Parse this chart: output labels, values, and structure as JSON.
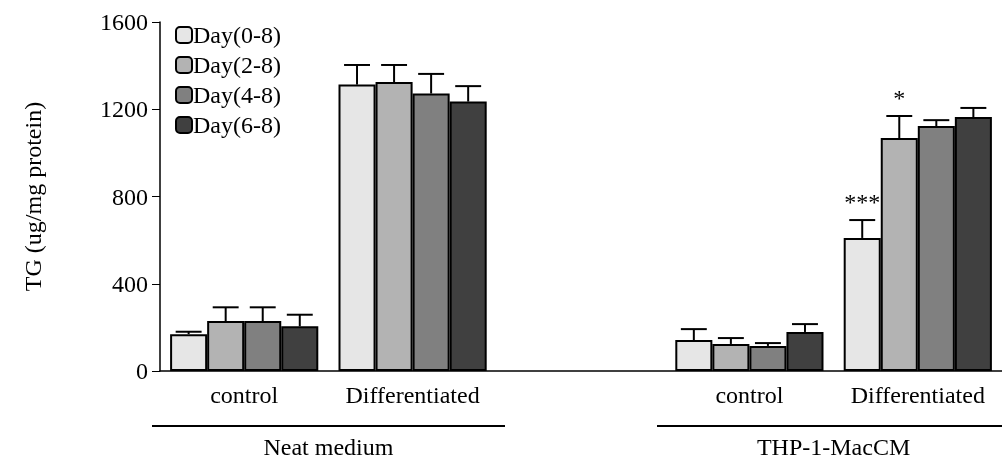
{
  "chart_data": {
    "type": "bar",
    "ylabel": "TG (ug/mg protein)",
    "categories": [
      "control",
      "Differentiated",
      null,
      "control",
      "Differentiated"
    ],
    "series": [
      {
        "name": "Day(0-8)",
        "color": "#e6e6e6",
        "values": [
          169,
          1313,
          null,
          142,
          610
        ],
        "errors": [
          [
            169,
            180
          ],
          [
            1313,
            1403
          ],
          null,
          [
            142,
            192
          ],
          [
            610,
            692
          ]
        ]
      },
      {
        "name": "Day(2-8)",
        "color": "#b3b3b3",
        "values": [
          229,
          1325,
          null,
          124,
          1068
        ],
        "errors": [
          [
            229,
            292
          ],
          [
            1325,
            1403
          ],
          null,
          [
            124,
            151
          ],
          [
            1068,
            1169
          ]
        ]
      },
      {
        "name": "Day(4-8)",
        "color": "#808080",
        "values": [
          229,
          1272,
          null,
          115,
          1123
        ],
        "errors": [
          [
            229,
            292
          ],
          [
            1272,
            1362
          ],
          null,
          [
            115,
            128
          ],
          [
            1123,
            1150
          ]
        ]
      },
      {
        "name": "Day(6-8)",
        "color": "#404040",
        "values": [
          205,
          1235,
          null,
          179,
          1164
        ],
        "errors": [
          [
            205,
            258
          ],
          [
            1235,
            1306
          ],
          null,
          [
            179,
            215
          ],
          [
            1164,
            1206
          ]
        ]
      }
    ],
    "ylim": [
      0,
      1600
    ],
    "yticks": [
      0,
      400,
      800,
      1200,
      1600
    ],
    "grid": false,
    "legend": "top left",
    "annotations": [
      "Neat medium",
      "THP-1-MacCM",
      "***",
      "*"
    ]
  }
}
